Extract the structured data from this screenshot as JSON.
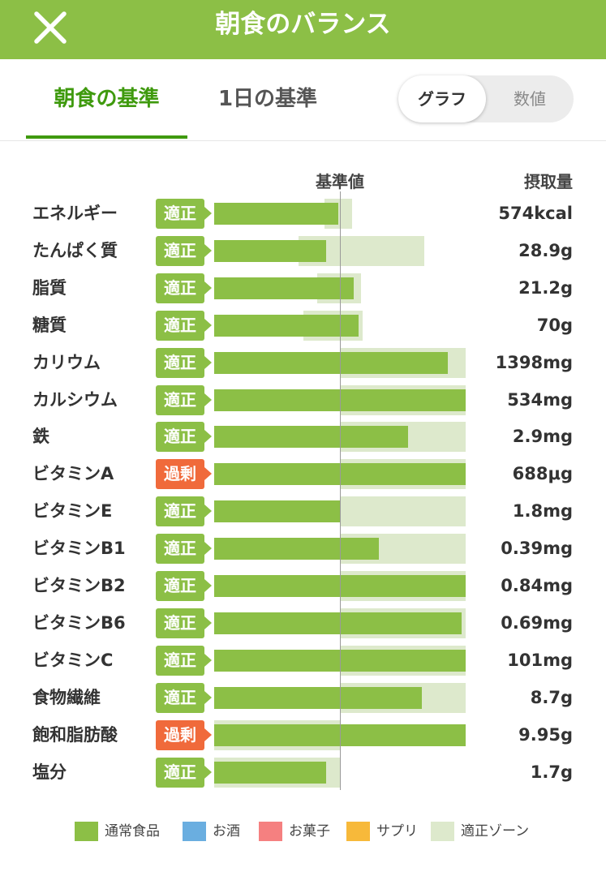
{
  "header": {
    "title": "朝食のバランス",
    "close_icon": "close-icon",
    "color": "#8cbf46"
  },
  "tabs": [
    {
      "label": "朝食の基準",
      "active": true
    },
    {
      "label": "1日の基準",
      "active": false
    }
  ],
  "view_toggle": {
    "options": [
      "グラフ",
      "数値"
    ],
    "selected": "グラフ"
  },
  "column_headers": {
    "standard": "基準値",
    "intake": "摂取量"
  },
  "status_colors": {
    "適正": "#8cbf46",
    "過剰": "#f06a3b"
  },
  "nutrients": [
    {
      "name": "エネルギー",
      "status": "適正",
      "value": "574kcal",
      "ratio": 0.99,
      "zone": [
        0.88,
        1.1
      ]
    },
    {
      "name": "たんぱく質",
      "status": "適正",
      "value": "28.9g",
      "ratio": 0.89,
      "zone": [
        0.67,
        1.67
      ]
    },
    {
      "name": "脂質",
      "status": "適正",
      "value": "21.2g",
      "ratio": 1.11,
      "zone": [
        0.82,
        1.17
      ]
    },
    {
      "name": "糖質",
      "status": "適正",
      "value": "70g",
      "ratio": 1.15,
      "zone": [
        0.71,
        1.18
      ]
    },
    {
      "name": "カリウム",
      "status": "適正",
      "value": "1398mg",
      "ratio": 1.86,
      "zone": [
        1.0,
        2.0
      ]
    },
    {
      "name": "カルシウム",
      "status": "適正",
      "value": "534mg",
      "ratio": 2.0,
      "zone": [
        1.0,
        2.0
      ]
    },
    {
      "name": "鉄",
      "status": "適正",
      "value": "2.9mg",
      "ratio": 1.54,
      "zone": [
        1.0,
        2.0
      ]
    },
    {
      "name": "ビタミンA",
      "status": "過剰",
      "value": "688μg",
      "ratio": 2.0,
      "zone": [
        1.0,
        2.0
      ]
    },
    {
      "name": "ビタミンE",
      "status": "適正",
      "value": "1.8mg",
      "ratio": 1.0,
      "zone": [
        1.0,
        2.0
      ]
    },
    {
      "name": "ビタミンB1",
      "status": "適正",
      "value": "0.39mg",
      "ratio": 1.31,
      "zone": [
        1.0,
        2.0
      ]
    },
    {
      "name": "ビタミンB2",
      "status": "適正",
      "value": "0.84mg",
      "ratio": 2.0,
      "zone": [
        1.0,
        2.0
      ]
    },
    {
      "name": "ビタミンB6",
      "status": "適正",
      "value": "0.69mg",
      "ratio": 1.97,
      "zone": [
        1.0,
        2.0
      ]
    },
    {
      "name": "ビタミンC",
      "status": "適正",
      "value": "101mg",
      "ratio": 2.0,
      "zone": [
        1.0,
        2.0
      ]
    },
    {
      "name": "食物繊維",
      "status": "適正",
      "value": "8.7g",
      "ratio": 1.65,
      "zone": [
        1.0,
        2.0
      ]
    },
    {
      "name": "飽和脂肪酸",
      "status": "過剰",
      "value": "9.95g",
      "ratio": 2.0,
      "zone": [
        0.0,
        1.0
      ]
    },
    {
      "name": "塩分",
      "status": "適正",
      "value": "1.7g",
      "ratio": 0.89,
      "zone": [
        0.0,
        1.0
      ]
    }
  ],
  "legend": [
    {
      "label": "通常食品",
      "color": "#8cbf46"
    },
    {
      "label": "お酒",
      "color": "#6aaee0"
    },
    {
      "label": "お菓子",
      "color": "#f58080"
    },
    {
      "label": "サプリ",
      "color": "#f7b93a"
    },
    {
      "label": "適正ゾーン",
      "color": "#dde9cc"
    }
  ]
}
